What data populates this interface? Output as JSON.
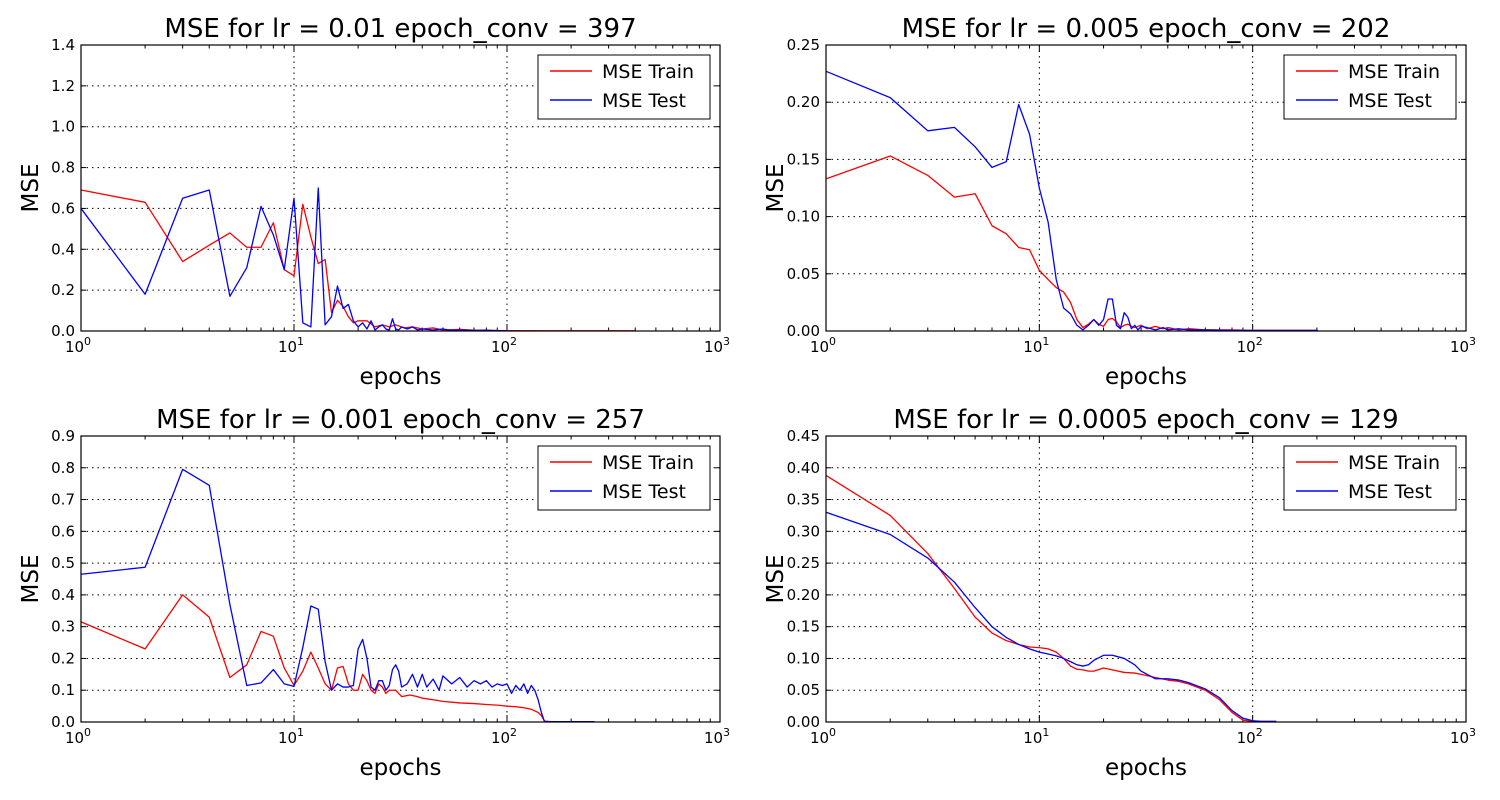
{
  "chart_data": [
    {
      "type": "line",
      "title": "MSE for lr = 0.01 epoch_conv = 397",
      "xlabel": "epochs",
      "ylabel": "MSE",
      "xscale": "log",
      "xlim": [
        1,
        1000
      ],
      "ylim": [
        0,
        1.4
      ],
      "yticks": [
        "0.0",
        "0.2",
        "0.4",
        "0.6",
        "0.8",
        "1.0",
        "1.2",
        "1.4"
      ],
      "xticks": [
        {
          "base": "10",
          "exp": "0"
        },
        {
          "base": "10",
          "exp": "1"
        },
        {
          "base": "10",
          "exp": "2"
        },
        {
          "base": "10",
          "exp": "3"
        }
      ],
      "grid": true,
      "legend": "top-right",
      "series": [
        {
          "name": "MSE Train",
          "color": "#ff0000",
          "x": [
            1,
            2,
            3,
            4,
            5,
            6,
            7,
            8,
            9,
            10,
            11,
            12,
            13,
            14,
            15,
            16,
            17,
            18,
            19,
            20,
            22,
            24,
            26,
            28,
            30,
            33,
            36,
            40,
            45,
            50,
            60,
            70,
            80,
            100,
            150,
            200,
            300,
            397
          ],
          "y": [
            0.69,
            0.63,
            0.34,
            0.42,
            0.48,
            0.41,
            0.41,
            0.53,
            0.3,
            0.27,
            0.62,
            0.46,
            0.33,
            0.35,
            0.09,
            0.15,
            0.12,
            0.07,
            0.04,
            0.05,
            0.05,
            0.02,
            0.03,
            0.02,
            0.03,
            0.015,
            0.02,
            0.01,
            0.015,
            0.005,
            0.008,
            0.004,
            0.003,
            0.002,
            0.001,
            0.001,
            0.001,
            0.001
          ]
        },
        {
          "name": "MSE Test",
          "color": "#0000ff",
          "x": [
            1,
            2,
            3,
            4,
            5,
            6,
            7,
            8,
            9,
            10,
            11,
            12,
            13,
            14,
            15,
            16,
            17,
            18,
            19,
            20,
            21,
            22,
            23,
            24,
            25,
            26,
            27,
            28,
            29,
            30,
            31,
            32,
            34,
            36,
            38,
            40,
            45,
            50,
            55,
            60,
            70,
            80,
            90,
            100
          ],
          "y": [
            0.6,
            0.18,
            0.65,
            0.69,
            0.17,
            0.31,
            0.61,
            0.47,
            0.3,
            0.65,
            0.04,
            0.02,
            0.7,
            0.03,
            0.07,
            0.22,
            0.11,
            0.13,
            0.05,
            0.02,
            0.04,
            0.01,
            0.05,
            0.005,
            0.02,
            0.03,
            0.01,
            0.005,
            0.06,
            0.01,
            0.005,
            0.02,
            0.01,
            0.02,
            0.005,
            0.01,
            0.005,
            0.01,
            0.003,
            0.005,
            0.003,
            0.004,
            0.002,
            0.001
          ]
        }
      ]
    },
    {
      "type": "line",
      "title": "MSE for lr = 0.005 epoch_conv = 202",
      "xlabel": "epochs",
      "ylabel": "MSE",
      "xscale": "log",
      "xlim": [
        1,
        1000
      ],
      "ylim": [
        0,
        0.25
      ],
      "yticks": [
        "0.00",
        "0.05",
        "0.10",
        "0.15",
        "0.20",
        "0.25"
      ],
      "xticks": [
        {
          "base": "10",
          "exp": "0"
        },
        {
          "base": "10",
          "exp": "1"
        },
        {
          "base": "10",
          "exp": "2"
        },
        {
          "base": "10",
          "exp": "3"
        }
      ],
      "grid": true,
      "legend": "top-right",
      "series": [
        {
          "name": "MSE Train",
          "color": "#ff0000",
          "x": [
            1,
            2,
            3,
            4,
            5,
            6,
            7,
            8,
            9,
            10,
            11,
            12,
            13,
            14,
            15,
            16,
            17,
            18,
            19,
            20,
            21,
            22,
            23,
            24,
            25,
            26,
            27,
            28,
            30,
            32,
            35,
            38,
            40,
            45,
            50,
            60,
            80,
            100,
            150,
            202
          ],
          "y": [
            0.133,
            0.153,
            0.136,
            0.117,
            0.12,
            0.092,
            0.085,
            0.073,
            0.071,
            0.053,
            0.045,
            0.038,
            0.034,
            0.025,
            0.01,
            0.003,
            0.006,
            0.01,
            0.006,
            0.004,
            0.01,
            0.011,
            0.008,
            0.003,
            0.005,
            0.006,
            0.004,
            0.003,
            0.005,
            0.002,
            0.004,
            0.002,
            0.003,
            0.001,
            0.002,
            0.001,
            0.001,
            0.0005,
            0.0005,
            0.0005
          ]
        },
        {
          "name": "MSE Test",
          "color": "#0000ff",
          "x": [
            1,
            2,
            3,
            4,
            5,
            6,
            7,
            8,
            9,
            10,
            11,
            12,
            13,
            14,
            15,
            16,
            17,
            18,
            19,
            20,
            21,
            22,
            23,
            24,
            25,
            26,
            27,
            28,
            29,
            30,
            32,
            35,
            38,
            40,
            45,
            50,
            60,
            80,
            100,
            150,
            202
          ],
          "y": [
            0.227,
            0.204,
            0.175,
            0.178,
            0.161,
            0.143,
            0.148,
            0.198,
            0.172,
            0.125,
            0.095,
            0.045,
            0.02,
            0.015,
            0.005,
            0.001,
            0.005,
            0.01,
            0.005,
            0.01,
            0.028,
            0.028,
            0.005,
            0.002,
            0.016,
            0.012,
            0.002,
            0.005,
            0.001,
            0.004,
            0.003,
            0.001,
            0.003,
            0.001,
            0.002,
            0.001,
            0.001,
            0.0005,
            0.0005,
            0.0005,
            0.0005
          ]
        }
      ]
    },
    {
      "type": "line",
      "title": "MSE for lr = 0.001 epoch_conv = 257",
      "xlabel": "epochs",
      "ylabel": "MSE",
      "xscale": "log",
      "xlim": [
        1,
        1000
      ],
      "ylim": [
        0,
        0.9
      ],
      "yticks": [
        "0.0",
        "0.1",
        "0.2",
        "0.3",
        "0.4",
        "0.5",
        "0.6",
        "0.7",
        "0.8",
        "0.9"
      ],
      "xticks": [
        {
          "base": "10",
          "exp": "0"
        },
        {
          "base": "10",
          "exp": "1"
        },
        {
          "base": "10",
          "exp": "2"
        },
        {
          "base": "10",
          "exp": "3"
        }
      ],
      "grid": true,
      "legend": "top-right",
      "series": [
        {
          "name": "MSE Train",
          "color": "#ff0000",
          "x": [
            1,
            2,
            3,
            4,
            5,
            6,
            7,
            8,
            9,
            10,
            11,
            12,
            13,
            14,
            15,
            16,
            17,
            18,
            19,
            20,
            21,
            22,
            23,
            24,
            25,
            26,
            27,
            28,
            30,
            32,
            35,
            38,
            40,
            45,
            50,
            60,
            70,
            80,
            90,
            100,
            110,
            120,
            130,
            140,
            145,
            150,
            160,
            200,
            257
          ],
          "y": [
            0.315,
            0.23,
            0.4,
            0.33,
            0.14,
            0.18,
            0.285,
            0.27,
            0.17,
            0.115,
            0.16,
            0.22,
            0.17,
            0.12,
            0.1,
            0.17,
            0.175,
            0.12,
            0.1,
            0.1,
            0.15,
            0.13,
            0.1,
            0.09,
            0.12,
            0.11,
            0.09,
            0.1,
            0.1,
            0.08,
            0.085,
            0.08,
            0.075,
            0.07,
            0.065,
            0.06,
            0.058,
            0.055,
            0.053,
            0.05,
            0.048,
            0.045,
            0.04,
            0.03,
            0.02,
            0.003,
            0.001,
            0.001,
            0.001
          ]
        },
        {
          "name": "MSE Test",
          "color": "#0000ff",
          "x": [
            1,
            2,
            3,
            4,
            5,
            6,
            7,
            8,
            9,
            10,
            11,
            12,
            13,
            14,
            15,
            16,
            17,
            18,
            19,
            20,
            21,
            22,
            23,
            24,
            25,
            26,
            27,
            28,
            29,
            30,
            31,
            32,
            34,
            36,
            38,
            40,
            42,
            45,
            48,
            50,
            55,
            60,
            65,
            70,
            75,
            80,
            85,
            90,
            95,
            100,
            105,
            110,
            115,
            120,
            125,
            130,
            135,
            140,
            145,
            150,
            160,
            200,
            257
          ],
          "y": [
            0.465,
            0.487,
            0.795,
            0.745,
            0.37,
            0.115,
            0.123,
            0.165,
            0.12,
            0.112,
            0.235,
            0.365,
            0.355,
            0.19,
            0.1,
            0.12,
            0.11,
            0.11,
            0.115,
            0.23,
            0.26,
            0.2,
            0.11,
            0.1,
            0.13,
            0.13,
            0.1,
            0.115,
            0.165,
            0.18,
            0.16,
            0.11,
            0.12,
            0.15,
            0.11,
            0.15,
            0.11,
            0.135,
            0.1,
            0.145,
            0.12,
            0.14,
            0.11,
            0.13,
            0.12,
            0.13,
            0.11,
            0.12,
            0.115,
            0.12,
            0.09,
            0.115,
            0.1,
            0.12,
            0.09,
            0.115,
            0.1,
            0.07,
            0.03,
            0.001,
            0.001,
            0.001,
            0.001
          ]
        }
      ]
    },
    {
      "type": "line",
      "title": "MSE for lr = 0.0005 epoch_conv = 129",
      "xlabel": "epochs",
      "ylabel": "MSE",
      "xscale": "log",
      "xlim": [
        1,
        1000
      ],
      "ylim": [
        0,
        0.45
      ],
      "yticks": [
        "0.00",
        "0.05",
        "0.10",
        "0.15",
        "0.20",
        "0.25",
        "0.30",
        "0.35",
        "0.40",
        "0.45"
      ],
      "xticks": [
        {
          "base": "10",
          "exp": "0"
        },
        {
          "base": "10",
          "exp": "1"
        },
        {
          "base": "10",
          "exp": "2"
        },
        {
          "base": "10",
          "exp": "3"
        }
      ],
      "grid": true,
      "legend": "top-right",
      "series": [
        {
          "name": "MSE Train",
          "color": "#ff0000",
          "x": [
            1,
            2,
            3,
            4,
            5,
            6,
            7,
            8,
            9,
            10,
            11,
            12,
            13,
            14,
            15,
            16,
            17,
            18,
            20,
            22,
            25,
            28,
            30,
            35,
            40,
            45,
            50,
            60,
            70,
            80,
            90,
            100,
            110,
            129
          ],
          "y": [
            0.388,
            0.325,
            0.265,
            0.21,
            0.165,
            0.14,
            0.128,
            0.122,
            0.118,
            0.117,
            0.115,
            0.11,
            0.1,
            0.088,
            0.083,
            0.082,
            0.08,
            0.08,
            0.085,
            0.082,
            0.078,
            0.077,
            0.075,
            0.07,
            0.066,
            0.064,
            0.06,
            0.05,
            0.035,
            0.015,
            0.003,
            0.001,
            0.001,
            0.001
          ]
        },
        {
          "name": "MSE Test",
          "color": "#0000ff",
          "x": [
            1,
            2,
            3,
            4,
            5,
            6,
            7,
            8,
            9,
            10,
            11,
            12,
            13,
            14,
            15,
            16,
            17,
            18,
            20,
            22,
            25,
            28,
            30,
            35,
            40,
            45,
            50,
            60,
            70,
            80,
            90,
            100,
            110,
            129
          ],
          "y": [
            0.33,
            0.295,
            0.258,
            0.22,
            0.18,
            0.15,
            0.133,
            0.122,
            0.115,
            0.11,
            0.107,
            0.104,
            0.1,
            0.095,
            0.09,
            0.088,
            0.09,
            0.097,
            0.105,
            0.105,
            0.1,
            0.09,
            0.08,
            0.068,
            0.068,
            0.066,
            0.062,
            0.052,
            0.038,
            0.018,
            0.006,
            0.002,
            0.001,
            0.001
          ]
        }
      ]
    }
  ]
}
